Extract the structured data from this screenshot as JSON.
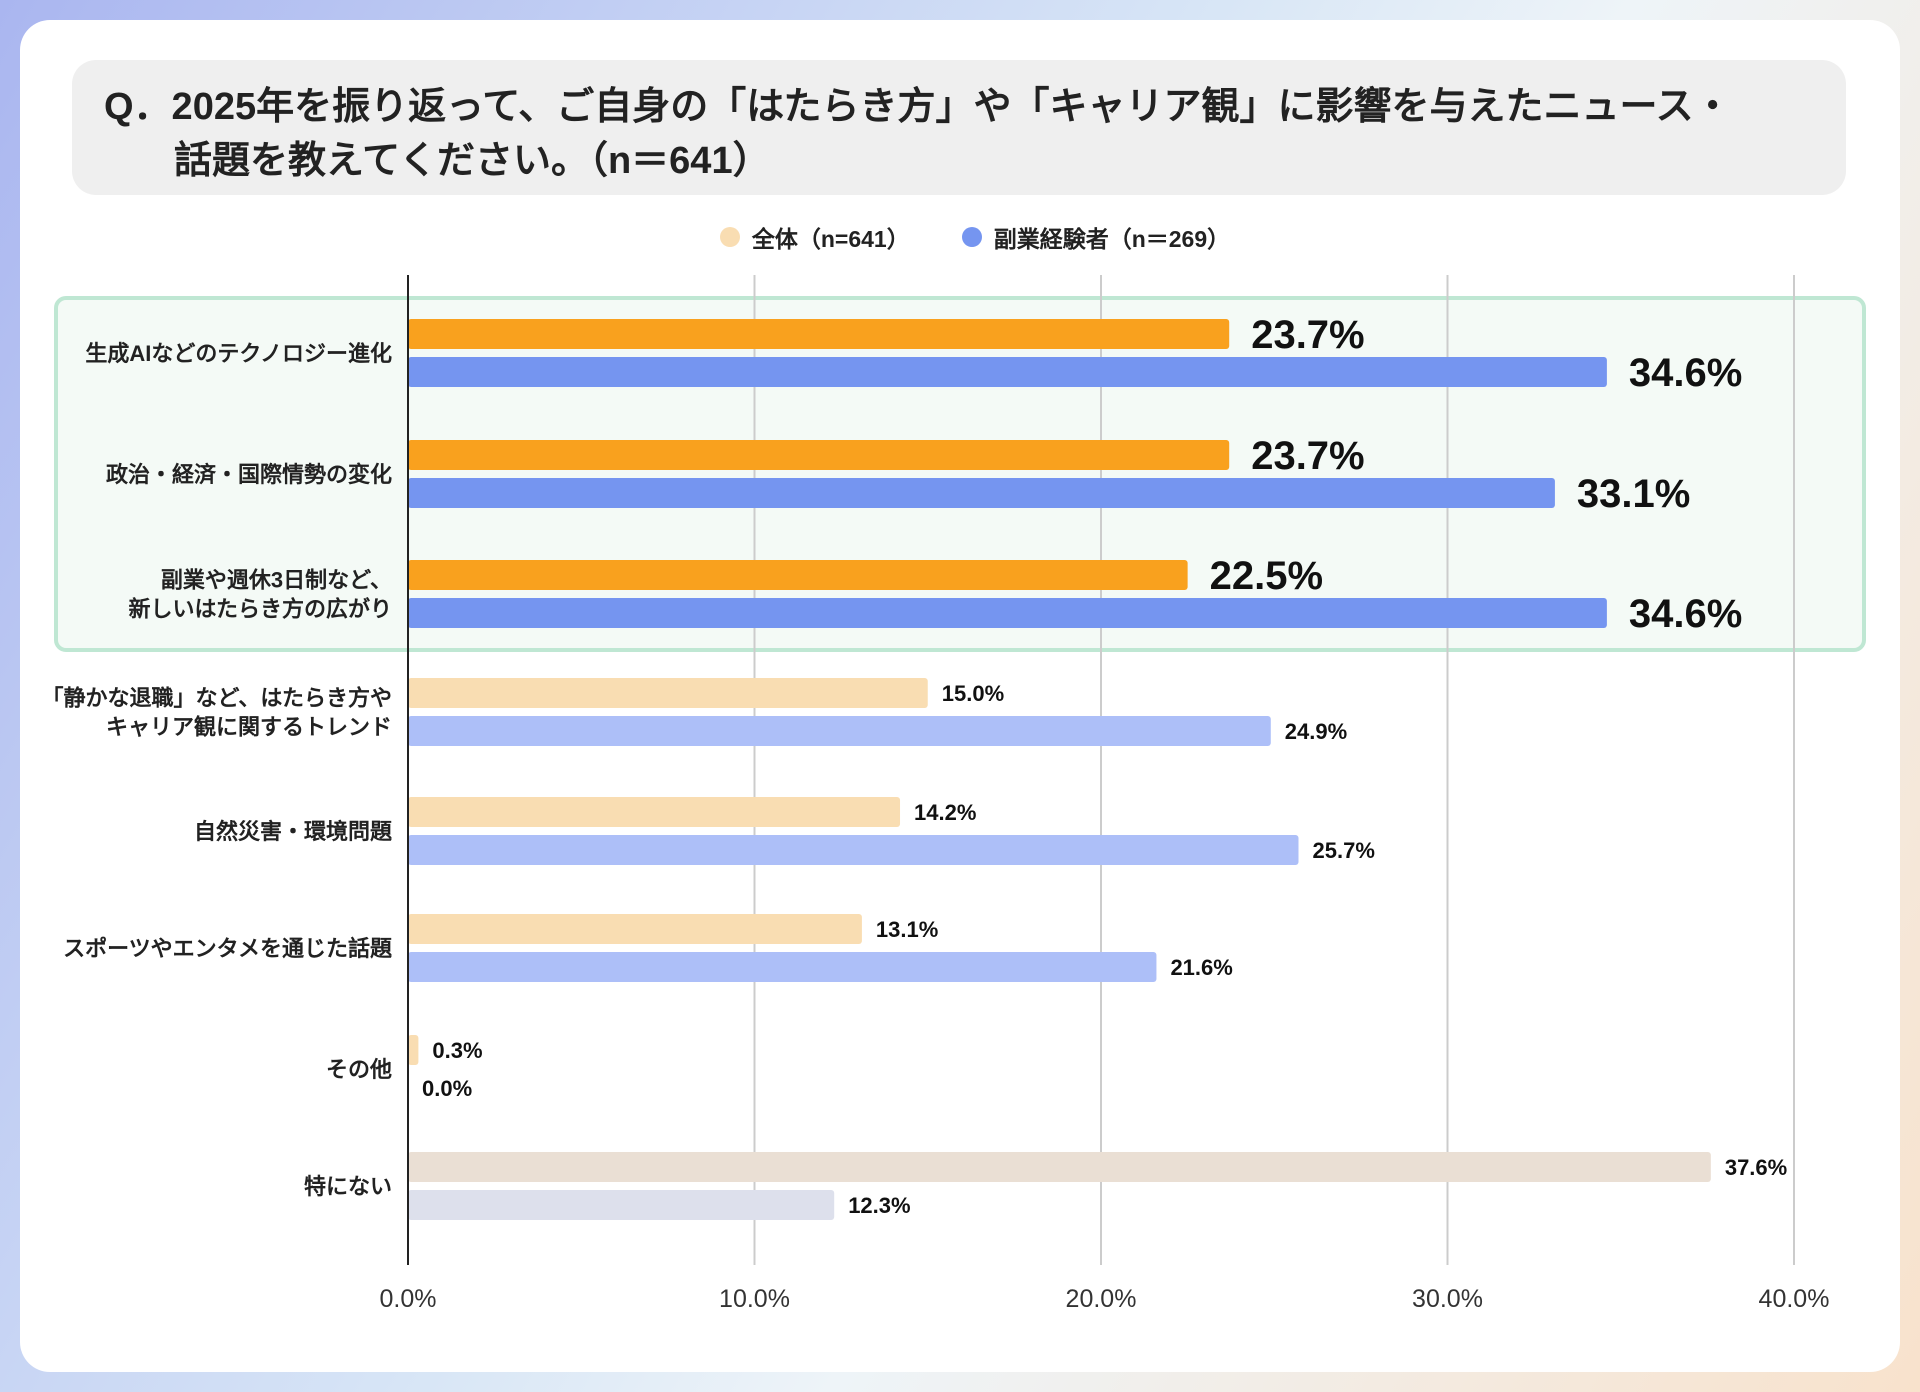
{
  "question": {
    "line1": "Q．2025年を振り返って、ご自身の「はたらき方」や「キャリア観」に影響を与えたニュース・",
    "line2": "話題を教えてください。（n＝641）"
  },
  "legend": {
    "series1": "全体（n=641）",
    "series2": "副業経験者（n＝269）"
  },
  "colors": {
    "s1_highlight": "#f9a11e",
    "s2_highlight": "#7595f0",
    "s1_normal": "#f9ddb2",
    "s2_normal": "#adbff8",
    "s1_none": "#eadfd4",
    "s2_none": "#dde0ec",
    "highlight_box": "#bfe7d3",
    "highlight_fill": "#f4faf6"
  },
  "chart_data": {
    "type": "bar",
    "orientation": "horizontal",
    "categories": [
      "生成AIなどのテクノロジー進化",
      "政治・経済・国際情勢の変化",
      "副業や週休3日制など、\n新しいはたらき方の広がり",
      "「静かな退職」など、はたらき方や\nキャリア観に関するトレンド",
      "自然災害・環境問題",
      "スポーツやエンタメを通じた話題",
      "その他",
      "特にない"
    ],
    "series": [
      {
        "name": "全体（n=641）",
        "values": [
          23.7,
          23.7,
          22.5,
          15.0,
          14.2,
          13.1,
          0.3,
          37.6
        ],
        "labels": [
          "23.7%",
          "23.7%",
          "22.5%",
          "15.0%",
          "14.2%",
          "13.1%",
          "0.3%",
          "37.6%"
        ]
      },
      {
        "name": "副業経験者（n＝269）",
        "values": [
          34.6,
          33.1,
          34.6,
          24.9,
          25.7,
          21.6,
          0.0,
          12.3
        ],
        "labels": [
          "34.6%",
          "33.1%",
          "34.6%",
          "24.9%",
          "25.7%",
          "21.6%",
          "0.0%",
          "12.3%"
        ]
      }
    ],
    "highlighted_categories": 3,
    "xlim": [
      0,
      40
    ],
    "xticks": [
      "0.0%",
      "10.0%",
      "20.0%",
      "30.0%",
      "40.0%"
    ],
    "grid": true
  }
}
